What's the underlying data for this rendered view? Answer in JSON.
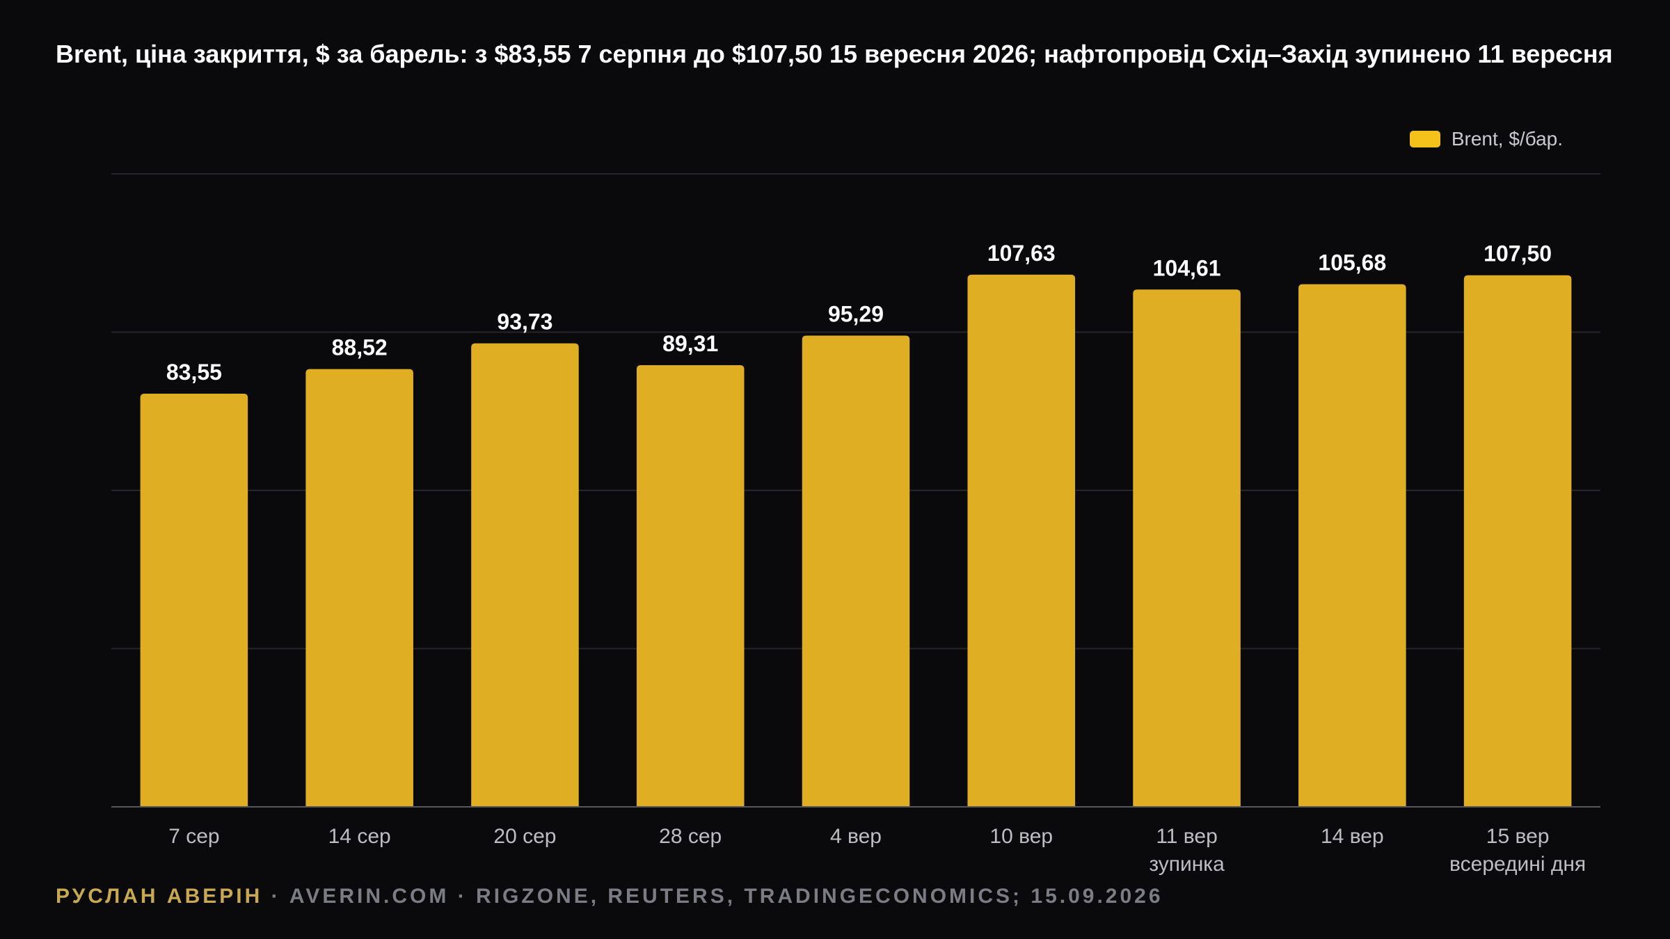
{
  "colors": {
    "background": "#0a0a0d",
    "bar": "#e0ae22",
    "legend_swatch": "#f5c21b",
    "grid": "#25252b",
    "axis": "#55555c",
    "value_label": "#ffffff",
    "tick_label": "#bdbdc4",
    "footer_author": "#c8a951",
    "footer_rest": "#7c7c84"
  },
  "chart_data": {
    "type": "bar",
    "title": "Brent, ціна закриття, $ за барель: з $83,55 7 серпня до $107,50 15 вересня 2026; нафтопровід Схід–Захід зупинено 11 вересня",
    "categories": [
      [
        "7 сер"
      ],
      [
        "14 сер"
      ],
      [
        "20 сер"
      ],
      [
        "28 сер"
      ],
      [
        "4 вер"
      ],
      [
        "10 вер"
      ],
      [
        "11 вер",
        "зупинка"
      ],
      [
        "14 вер"
      ],
      [
        "15 вер",
        "всередині дня"
      ]
    ],
    "series": [
      {
        "name": "Brent, $/бар.",
        "values": [
          83.55,
          88.52,
          93.73,
          89.31,
          95.29,
          107.63,
          104.61,
          105.68,
          107.5
        ],
        "labels": [
          "83,55",
          "88,52",
          "93,73",
          "89,31",
          "95,29",
          "107,63",
          "104,61",
          "105,68",
          "107,50"
        ]
      }
    ],
    "ylim": [
      0,
      128
    ],
    "grid": true,
    "legend_position": "top-right",
    "xlabel": "",
    "ylabel": ""
  },
  "footer": {
    "author": "РУСЛАН АВЕРІН",
    "rest": " · AVERIN.COM · RIGZONE, REUTERS, TRADINGECONOMICS; 15.09.2026"
  }
}
